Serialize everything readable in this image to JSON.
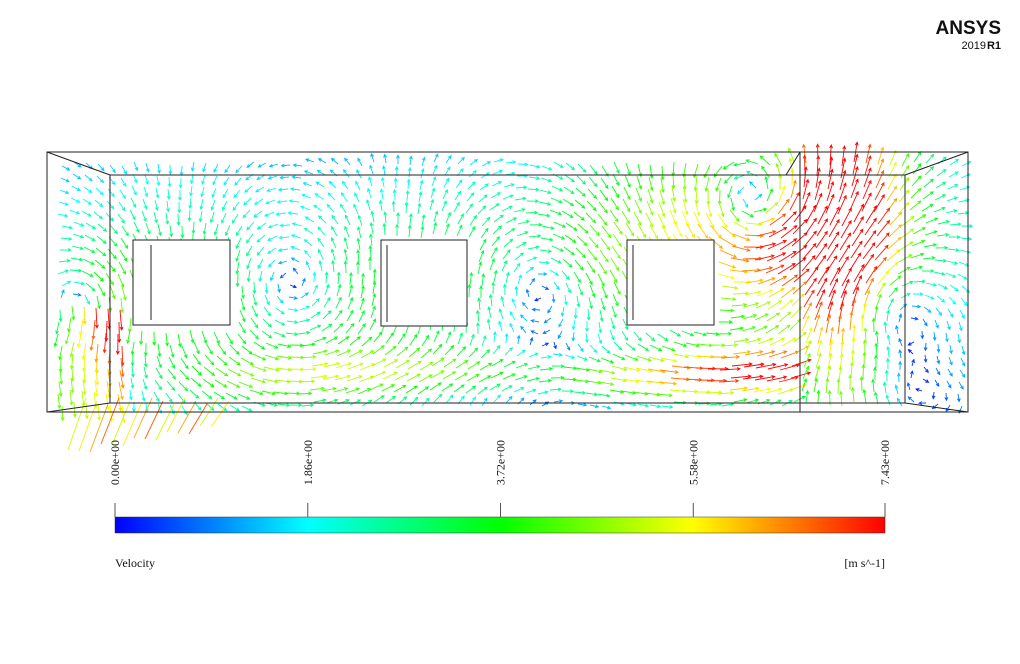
{
  "logo": {
    "brand": "ANSYS",
    "version": "2019",
    "release": "R1"
  },
  "colorbar": {
    "title": "Velocity",
    "units": "[m s^-1]",
    "range": [
      0,
      7.43
    ],
    "ticks": [
      {
        "value": 0,
        "label": "0.00e+00"
      },
      {
        "value": 1.86,
        "label": "1.86e+00"
      },
      {
        "value": 3.72,
        "label": "3.72e+00"
      },
      {
        "value": 5.58,
        "label": "5.58e+00"
      },
      {
        "value": 7.43,
        "label": "7.43e+00"
      }
    ]
  }
}
